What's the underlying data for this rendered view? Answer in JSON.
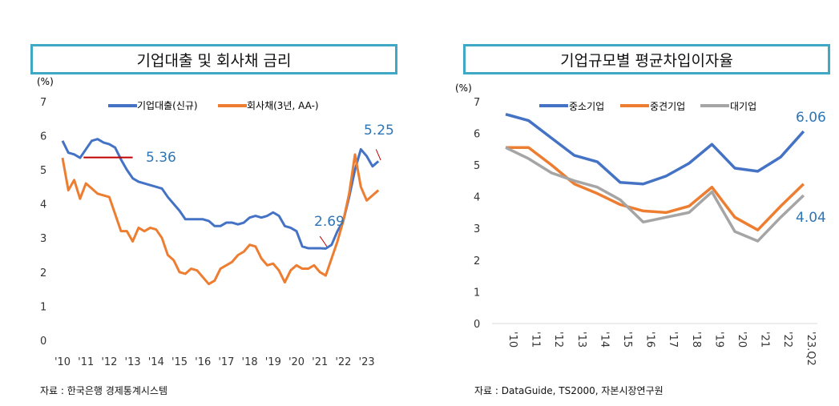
{
  "chart_data": [
    {
      "type": "line",
      "title": "기업대출 및 회사채 금리",
      "ylabel": "(%)",
      "ylim": [
        0,
        7
      ],
      "yticks": [
        0,
        1,
        2,
        3,
        4,
        5,
        6,
        7
      ],
      "xticklabels": [
        "'10",
        "'11",
        "'12",
        "'13",
        "'14",
        "'15",
        "'16",
        "'17",
        "'18",
        "'19",
        "'20",
        "'21",
        "'22",
        "'23"
      ],
      "grid": false,
      "legend": "top",
      "source": "자료 : 한국은행 경제통계시스템",
      "series": [
        {
          "name": "기업대출(신규)",
          "color": "#4472c4",
          "points": [
            [
              2010.0,
              5.85
            ],
            [
              2010.25,
              5.5
            ],
            [
              2010.5,
              5.45
            ],
            [
              2010.75,
              5.35
            ],
            [
              2011.0,
              5.6
            ],
            [
              2011.25,
              5.85
            ],
            [
              2011.5,
              5.9
            ],
            [
              2011.75,
              5.8
            ],
            [
              2012.0,
              5.75
            ],
            [
              2012.25,
              5.65
            ],
            [
              2012.5,
              5.3
            ],
            [
              2012.75,
              5.0
            ],
            [
              2013.0,
              4.75
            ],
            [
              2013.25,
              4.65
            ],
            [
              2013.5,
              4.6
            ],
            [
              2013.75,
              4.55
            ],
            [
              2014.0,
              4.5
            ],
            [
              2014.25,
              4.45
            ],
            [
              2014.5,
              4.2
            ],
            [
              2014.75,
              4.0
            ],
            [
              2015.0,
              3.8
            ],
            [
              2015.25,
              3.55
            ],
            [
              2015.5,
              3.55
            ],
            [
              2015.75,
              3.55
            ],
            [
              2016.0,
              3.55
            ],
            [
              2016.25,
              3.5
            ],
            [
              2016.5,
              3.35
            ],
            [
              2016.75,
              3.35
            ],
            [
              2017.0,
              3.45
            ],
            [
              2017.25,
              3.45
            ],
            [
              2017.5,
              3.4
            ],
            [
              2017.75,
              3.45
            ],
            [
              2018.0,
              3.6
            ],
            [
              2018.25,
              3.65
            ],
            [
              2018.5,
              3.6
            ],
            [
              2018.75,
              3.65
            ],
            [
              2019.0,
              3.75
            ],
            [
              2019.25,
              3.65
            ],
            [
              2019.5,
              3.35
            ],
            [
              2019.75,
              3.3
            ],
            [
              2020.0,
              3.2
            ],
            [
              2020.25,
              2.75
            ],
            [
              2020.5,
              2.7
            ],
            [
              2020.75,
              2.7
            ],
            [
              2021.0,
              2.7
            ],
            [
              2021.25,
              2.69
            ],
            [
              2021.5,
              2.8
            ],
            [
              2021.75,
              3.2
            ],
            [
              2022.0,
              3.5
            ],
            [
              2022.25,
              4.2
            ],
            [
              2022.5,
              5.0
            ],
            [
              2022.75,
              5.6
            ],
            [
              2023.0,
              5.4
            ],
            [
              2023.25,
              5.1
            ],
            [
              2023.5,
              5.25
            ]
          ]
        },
        {
          "name": "회사채(3년, AA-)",
          "color": "#ed7d31",
          "points": [
            [
              2010.0,
              5.35
            ],
            [
              2010.25,
              4.4
            ],
            [
              2010.5,
              4.7
            ],
            [
              2010.75,
              4.15
            ],
            [
              2011.0,
              4.6
            ],
            [
              2011.25,
              4.45
            ],
            [
              2011.5,
              4.3
            ],
            [
              2011.75,
              4.25
            ],
            [
              2012.0,
              4.2
            ],
            [
              2012.25,
              3.7
            ],
            [
              2012.5,
              3.2
            ],
            [
              2012.75,
              3.2
            ],
            [
              2013.0,
              2.9
            ],
            [
              2013.25,
              3.3
            ],
            [
              2013.5,
              3.2
            ],
            [
              2013.75,
              3.3
            ],
            [
              2014.0,
              3.25
            ],
            [
              2014.25,
              3.0
            ],
            [
              2014.5,
              2.5
            ],
            [
              2014.75,
              2.35
            ],
            [
              2015.0,
              2.0
            ],
            [
              2015.25,
              1.95
            ],
            [
              2015.5,
              2.1
            ],
            [
              2015.75,
              2.05
            ],
            [
              2016.0,
              1.85
            ],
            [
              2016.25,
              1.65
            ],
            [
              2016.5,
              1.75
            ],
            [
              2016.75,
              2.1
            ],
            [
              2017.0,
              2.2
            ],
            [
              2017.25,
              2.3
            ],
            [
              2017.5,
              2.5
            ],
            [
              2017.75,
              2.6
            ],
            [
              2018.0,
              2.8
            ],
            [
              2018.25,
              2.75
            ],
            [
              2018.5,
              2.4
            ],
            [
              2018.75,
              2.2
            ],
            [
              2019.0,
              2.25
            ],
            [
              2019.25,
              2.05
            ],
            [
              2019.5,
              1.7
            ],
            [
              2019.75,
              2.05
            ],
            [
              2020.0,
              2.2
            ],
            [
              2020.25,
              2.1
            ],
            [
              2020.5,
              2.1
            ],
            [
              2020.75,
              2.2
            ],
            [
              2021.0,
              2.0
            ],
            [
              2021.25,
              1.9
            ],
            [
              2021.5,
              2.4
            ],
            [
              2021.75,
              2.9
            ],
            [
              2022.0,
              3.5
            ],
            [
              2022.25,
              4.3
            ],
            [
              2022.5,
              5.45
            ],
            [
              2022.75,
              4.5
            ],
            [
              2023.0,
              4.1
            ],
            [
              2023.25,
              4.25
            ],
            [
              2023.5,
              4.4
            ]
          ]
        }
      ],
      "annotations": [
        {
          "text": "5.36",
          "value": 5.36
        },
        {
          "text": "2.69",
          "value": 2.69
        },
        {
          "text": "5.25",
          "value": 5.25
        }
      ]
    },
    {
      "type": "line",
      "title": "기업규모별 평균차입이자율",
      "ylabel": "(%)",
      "ylim": [
        0,
        7
      ],
      "yticks": [
        0,
        1,
        2,
        3,
        4,
        5,
        6,
        7
      ],
      "categories": [
        "'10",
        "'11",
        "'12",
        "'13",
        "'14",
        "'15",
        "'16",
        "'17",
        "'18",
        "'19",
        "'20",
        "'21",
        "'22",
        "'23.Q2"
      ],
      "grid": false,
      "legend": "top",
      "source": "자료 : DataGuide, TS2000, 자본시장연구원",
      "series": [
        {
          "name": "중소기업",
          "color": "#4472c4",
          "values": [
            6.6,
            6.4,
            5.85,
            5.3,
            5.1,
            4.45,
            4.4,
            4.65,
            5.05,
            5.65,
            4.9,
            4.8,
            5.25,
            6.06
          ]
        },
        {
          "name": "중견기업",
          "color": "#ed7d31",
          "values": [
            5.55,
            5.55,
            5.0,
            4.4,
            4.1,
            3.75,
            3.55,
            3.5,
            3.7,
            4.3,
            3.35,
            2.95,
            3.7,
            4.4
          ]
        },
        {
          "name": "대기업",
          "color": "#a5a5a5",
          "values": [
            5.55,
            5.2,
            4.75,
            4.5,
            4.3,
            3.9,
            3.2,
            3.35,
            3.5,
            4.15,
            2.9,
            2.6,
            3.35,
            4.04
          ]
        }
      ],
      "annotations": [
        {
          "text": "6.06",
          "value": 6.06
        },
        {
          "text": "4.04",
          "value": 4.04
        }
      ]
    }
  ]
}
